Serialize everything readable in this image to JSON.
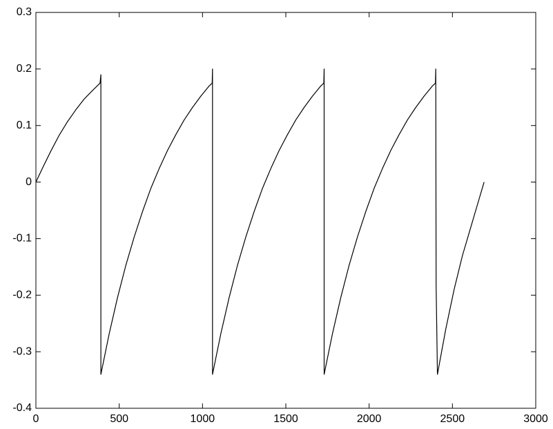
{
  "chart_data": {
    "type": "line",
    "x": [
      0,
      40,
      90,
      140,
      190,
      240,
      290,
      340,
      385,
      390,
      390,
      440,
      490,
      540,
      590,
      640,
      690,
      740,
      790,
      840,
      890,
      940,
      990,
      1040,
      1058,
      1060,
      1060,
      1110,
      1160,
      1210,
      1260,
      1310,
      1360,
      1410,
      1460,
      1510,
      1560,
      1610,
      1660,
      1710,
      1728,
      1730,
      1730,
      1780,
      1830,
      1880,
      1930,
      1980,
      2030,
      2080,
      2130,
      2180,
      2230,
      2280,
      2330,
      2380,
      2398,
      2400,
      2402,
      2410,
      2460,
      2510,
      2560,
      2610,
      2660,
      2690
    ],
    "values": [
      0,
      0.025,
      0.055,
      0.083,
      0.107,
      0.128,
      0.147,
      0.162,
      0.175,
      0.19,
      -0.34,
      -0.268,
      -0.204,
      -0.147,
      -0.097,
      -0.052,
      -0.011,
      0.024,
      0.056,
      0.084,
      0.11,
      0.132,
      0.152,
      0.17,
      0.175,
      0.2,
      -0.34,
      -0.268,
      -0.204,
      -0.147,
      -0.097,
      -0.052,
      -0.011,
      0.024,
      0.056,
      0.084,
      0.11,
      0.132,
      0.152,
      0.17,
      0.175,
      0.2,
      -0.34,
      -0.268,
      -0.204,
      -0.147,
      -0.097,
      -0.052,
      -0.011,
      0.024,
      0.056,
      0.084,
      0.11,
      0.132,
      0.152,
      0.17,
      0.175,
      0.2,
      -0.18,
      -0.34,
      -0.26,
      -0.19,
      -0.13,
      -0.08,
      -0.03,
      0
    ],
    "color": "#000000",
    "xlim": [
      0,
      3000
    ],
    "xticks": [
      0,
      500,
      1000,
      1500,
      2000,
      2500,
      3000
    ],
    "ylim": [
      -0.4,
      0.3
    ],
    "yticks": [
      -0.4,
      -0.3,
      -0.2,
      -0.1,
      0,
      0.1,
      0.2,
      0.3
    ],
    "grid": false
  }
}
